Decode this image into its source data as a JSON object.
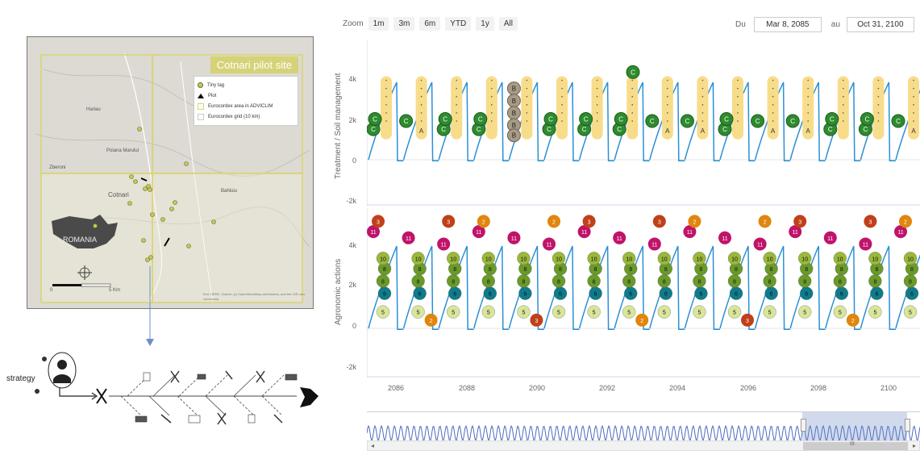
{
  "map": {
    "title": "Cotnari pilot site",
    "legend": [
      {
        "label": "Tiny tag",
        "icon": "dot-icon"
      },
      {
        "label": "Plot",
        "icon": "plot-icon"
      },
      {
        "label": "Eurocordex area in ADVICLIM",
        "icon": "area-square-icon"
      },
      {
        "label": "Eurocordex grid (10 km)",
        "icon": "grid-square-icon"
      }
    ],
    "places": [
      "Harlau",
      "Poiana Marului",
      "Zberoni",
      "Cotnari",
      "Bahluiu"
    ],
    "country_label": "ROMANIA",
    "scale": {
      "zero": "0",
      "five": "5",
      "unit": "Km"
    },
    "credit": "Esri, HERE, Garmin, (c) OpenStreetMap contributors, and the GIS user community",
    "colors": {
      "tag": "#c5c95a",
      "area": "#d8d46e",
      "romania": "#4a4a4a"
    }
  },
  "process": {
    "strategy_label": "strategy"
  },
  "toolbar": {
    "zoom_label": "Zoom",
    "zoom_buttons": [
      "1m",
      "3m",
      "6m",
      "YTD",
      "1y",
      "All"
    ],
    "from_label": "Du",
    "from_date": "Mar 8, 2085",
    "to_label": "au",
    "to_date": "Oct 31, 2100"
  },
  "chart_data": [
    {
      "type": "line",
      "title": "",
      "ylabel": "Treatment / Soil management",
      "ylim": [
        -2000,
        5000
      ],
      "yticks": [
        "4k",
        "2k",
        "0",
        "-2k"
      ],
      "series": [
        {
          "values": [
            0,
            3700,
            200,
            0,
            3700,
            200
          ]
        }
      ],
      "markers": {
        "A_label": "A",
        "B_label": "B",
        "C_label": "C",
        "colors": {
          "A": "#f7dc8a",
          "B": "#a89b85",
          "C": "#2e8b2e"
        }
      }
    },
    {
      "type": "line",
      "title": "",
      "ylabel": "Agronomic actions",
      "ylim": [
        -2000,
        5000
      ],
      "yticks": [
        "4k",
        "2k",
        "0",
        "-2k"
      ],
      "xticks": [
        "2086",
        "2088",
        "2090",
        "2092",
        "2094",
        "2096",
        "2098",
        "2100"
      ],
      "markers": {
        "labels": [
          "2",
          "3",
          "5",
          "6",
          "8",
          "10",
          "11"
        ],
        "colors": {
          "2": "#e0860e",
          "3": "#c0401a",
          "5": "#d9e59a",
          "6": "#0f7b8a",
          "8": "#6a9a2a",
          "10": "#9ab83a",
          "11": "#c0136a"
        }
      }
    }
  ],
  "navigator": {
    "left_arrow": "◂",
    "right_arrow": "▸",
    "grip": "III",
    "line_color": "#4d6bc0"
  }
}
